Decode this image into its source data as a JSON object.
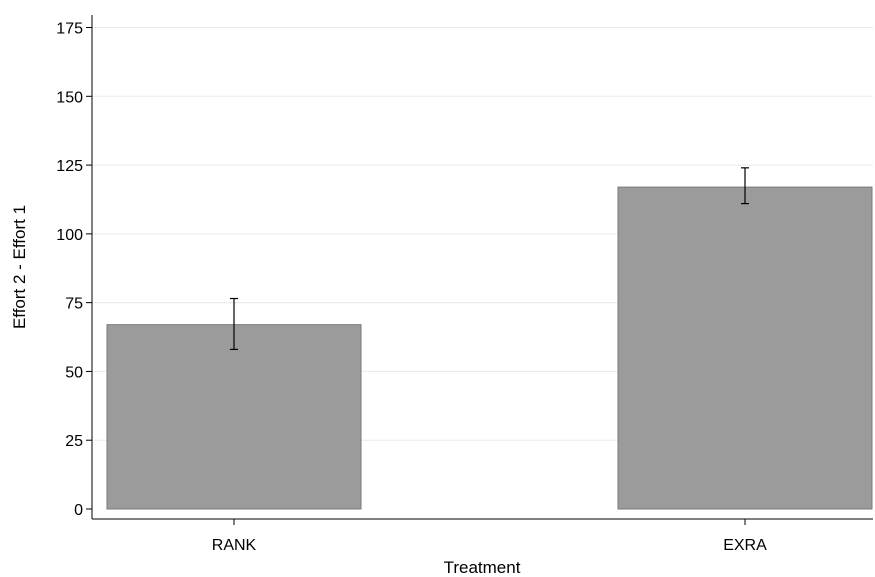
{
  "colors": {
    "bar_fill": "#9b9b9b",
    "error_bar": "#000000",
    "gridline": "#eaeaea"
  },
  "chart_data": {
    "type": "bar",
    "categories": [
      "RANK",
      "EXRA"
    ],
    "series": [
      {
        "values": [
          67,
          117
        ],
        "error_low": [
          58,
          111
        ],
        "error_high": [
          76.5,
          124
        ]
      }
    ],
    "xlabel": "Treatment",
    "ylabel": "Effort 2 - Effort 1",
    "ylim": [
      0,
      175
    ],
    "yticks": [
      0,
      25,
      50,
      75,
      100,
      125,
      150,
      175
    ],
    "yticklabels": [
      "0",
      "25",
      "50",
      "75",
      "100",
      "125",
      "150",
      "175"
    ],
    "grid": true,
    "legend": "none"
  }
}
